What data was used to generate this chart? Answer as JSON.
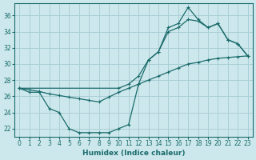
{
  "xlabel": "Humidex (Indice chaleur)",
  "bg_color": "#cde8ec",
  "grid_color": "#aacfd6",
  "line_color": "#1a6b6b",
  "xlim": [
    -0.5,
    23.5
  ],
  "ylim": [
    21.0,
    37.5
  ],
  "xticks": [
    0,
    1,
    2,
    3,
    4,
    5,
    6,
    7,
    8,
    9,
    10,
    11,
    12,
    13,
    14,
    15,
    16,
    17,
    18,
    19,
    20,
    21,
    22,
    23
  ],
  "yticks": [
    22,
    24,
    26,
    28,
    30,
    32,
    34,
    36
  ],
  "line1_x": [
    0,
    1,
    2,
    3,
    4,
    5,
    6,
    7,
    8,
    9,
    10,
    11,
    12,
    13,
    14,
    15,
    16,
    17,
    18,
    19,
    20,
    21,
    22,
    23
  ],
  "line1_y": [
    27.0,
    26.5,
    26.5,
    24.5,
    24.0,
    22.0,
    21.5,
    21.5,
    21.5,
    21.5,
    22.0,
    22.5,
    27.5,
    30.5,
    31.5,
    34.5,
    35.0,
    37.0,
    35.5,
    34.5,
    35.0,
    33.0,
    32.5,
    31.0
  ],
  "line2_x": [
    0,
    1,
    2,
    3,
    4,
    5,
    6,
    7,
    8,
    9,
    10,
    11,
    12,
    13,
    14,
    15,
    16,
    17,
    18,
    19,
    20,
    21,
    22,
    23
  ],
  "line2_y": [
    27.0,
    26.8,
    26.6,
    26.3,
    26.1,
    25.9,
    25.7,
    25.5,
    25.3,
    25.9,
    26.5,
    27.0,
    27.5,
    28.0,
    28.5,
    29.0,
    29.5,
    30.0,
    30.2,
    30.5,
    30.7,
    30.8,
    30.9,
    31.0
  ],
  "line3_x": [
    0,
    10,
    11,
    12,
    13,
    14,
    15,
    16,
    17,
    18,
    19,
    20,
    21,
    22,
    23
  ],
  "line3_y": [
    27.0,
    27.0,
    27.5,
    28.5,
    30.5,
    31.5,
    34.0,
    34.5,
    35.5,
    35.3,
    34.5,
    35.0,
    33.0,
    32.5,
    31.0
  ]
}
